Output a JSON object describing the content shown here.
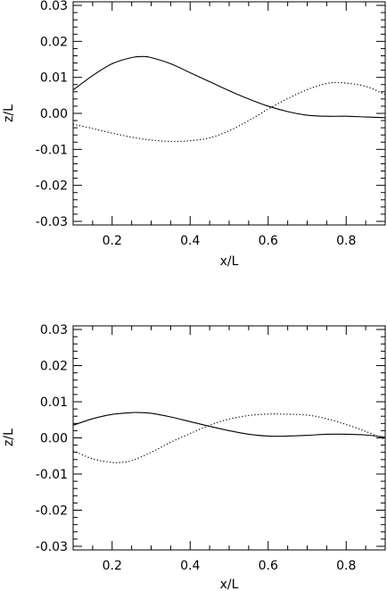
{
  "chart_data": [
    {
      "type": "line",
      "xlabel": "x/L",
      "ylabel": "z/L",
      "xlim": [
        0.1,
        0.9
      ],
      "ylim": [
        -0.031,
        0.031
      ],
      "x_ticks": [
        0.2,
        0.4,
        0.6,
        0.8
      ],
      "x_tick_labels": [
        "0.2",
        "0.4",
        "0.6",
        "0.8"
      ],
      "y_ticks": [
        0.03,
        0.02,
        0.01,
        0.0,
        -0.01,
        -0.02,
        -0.03
      ],
      "y_tick_labels": [
        "0.03",
        "0.02",
        "0.01",
        "0.00",
        "-0.01",
        "-0.02",
        "-0.03"
      ],
      "grid": false,
      "series": [
        {
          "style": "solid",
          "x": [
            0.1,
            0.15,
            0.2,
            0.25,
            0.28,
            0.3,
            0.35,
            0.4,
            0.45,
            0.5,
            0.55,
            0.6,
            0.65,
            0.7,
            0.75,
            0.8,
            0.85,
            0.9
          ],
          "y": [
            0.0065,
            0.0105,
            0.0138,
            0.0155,
            0.0158,
            0.0155,
            0.0138,
            0.0113,
            0.0088,
            0.0063,
            0.004,
            0.002,
            0.0005,
            -0.0005,
            -0.0008,
            -0.0008,
            -0.001,
            -0.0012
          ]
        },
        {
          "style": "dotted",
          "x": [
            0.1,
            0.15,
            0.2,
            0.25,
            0.3,
            0.35,
            0.4,
            0.45,
            0.5,
            0.55,
            0.6,
            0.65,
            0.7,
            0.75,
            0.79,
            0.85,
            0.9
          ],
          "y": [
            -0.003,
            -0.0042,
            -0.0055,
            -0.0066,
            -0.0074,
            -0.0078,
            -0.0076,
            -0.0068,
            -0.0048,
            -0.002,
            0.0012,
            0.0041,
            0.0066,
            0.0083,
            0.0085,
            0.0075,
            0.0052
          ]
        }
      ]
    },
    {
      "type": "line",
      "xlabel": "x/L",
      "ylabel": "z/L",
      "xlim": [
        0.1,
        0.9
      ],
      "ylim": [
        -0.031,
        0.031
      ],
      "x_ticks": [
        0.2,
        0.4,
        0.6,
        0.8
      ],
      "x_tick_labels": [
        "0.2",
        "0.4",
        "0.6",
        "0.8"
      ],
      "y_ticks": [
        0.03,
        0.02,
        0.01,
        0.0,
        -0.01,
        -0.02,
        -0.03
      ],
      "y_tick_labels": [
        "0.03",
        "0.02",
        "0.01",
        "0.00",
        "-0.01",
        "-0.02",
        "-0.03"
      ],
      "grid": false,
      "series": [
        {
          "style": "solid",
          "x": [
            0.1,
            0.15,
            0.2,
            0.25,
            0.27,
            0.3,
            0.35,
            0.4,
            0.45,
            0.5,
            0.55,
            0.6,
            0.65,
            0.7,
            0.75,
            0.8,
            0.85,
            0.9
          ],
          "y": [
            0.0035,
            0.0053,
            0.0065,
            0.007,
            0.007,
            0.0068,
            0.0058,
            0.0045,
            0.0032,
            0.002,
            0.001,
            0.0005,
            0.0005,
            0.0007,
            0.001,
            0.001,
            0.0008,
            0.0002
          ]
        },
        {
          "style": "dotted",
          "x": [
            0.1,
            0.15,
            0.2,
            0.22,
            0.25,
            0.3,
            0.35,
            0.4,
            0.45,
            0.5,
            0.55,
            0.6,
            0.63,
            0.7,
            0.75,
            0.8,
            0.85,
            0.9
          ],
          "y": [
            -0.0035,
            -0.0058,
            -0.0068,
            -0.0068,
            -0.0063,
            -0.004,
            -0.0012,
            0.0012,
            0.0035,
            0.0052,
            0.0062,
            0.0066,
            0.0066,
            0.0063,
            0.0053,
            0.0037,
            0.0018,
            -0.0005
          ]
        }
      ]
    }
  ]
}
